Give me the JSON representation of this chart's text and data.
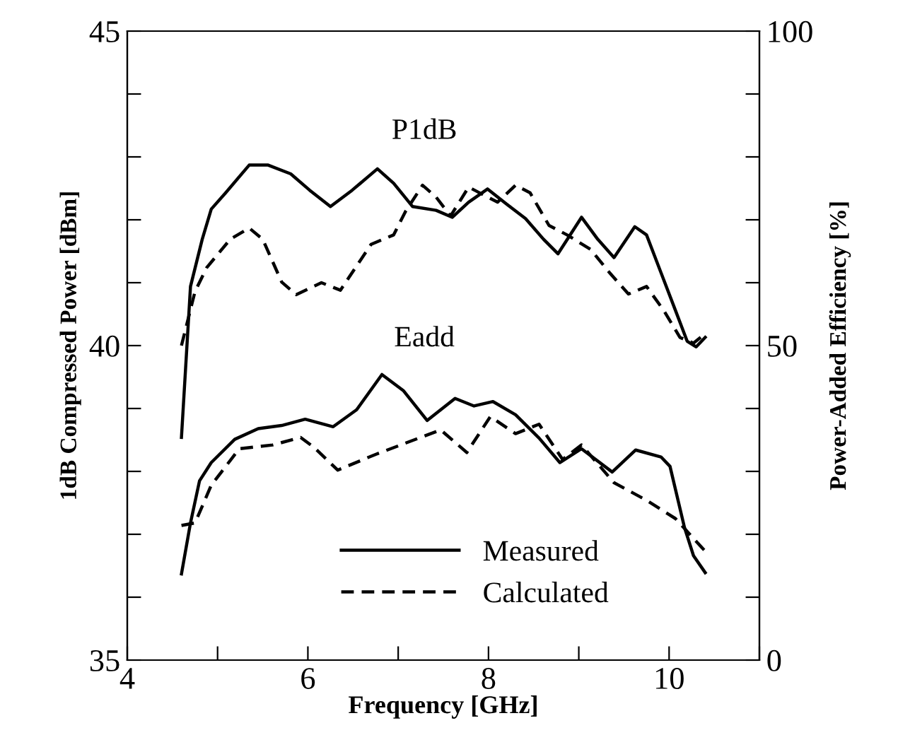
{
  "chart_data": {
    "type": "line",
    "xlabel": "Frequency [GHz]",
    "ylabel": "1dB Compressed Power [dBm]",
    "y2label": "Power-Added Efficiency [%]",
    "xlim": [
      4,
      11
    ],
    "xticks": [
      4,
      {
        "value": 5,
        "label": null
      },
      6,
      {
        "value": 7,
        "label": null
      },
      8,
      {
        "value": 9,
        "label": null
      },
      10,
      {
        "value": 11,
        "label": null
      }
    ],
    "ylim": [
      35,
      45
    ],
    "yticks": [
      35,
      {
        "value": 36,
        "label": null
      },
      {
        "value": 37,
        "label": null
      },
      {
        "value": 38,
        "label": null
      },
      {
        "value": 39,
        "label": null
      },
      40,
      {
        "value": 41,
        "label": null
      },
      {
        "value": 42,
        "label": null
      },
      {
        "value": 43,
        "label": null
      },
      {
        "value": 44,
        "label": null
      },
      45
    ],
    "y2lim": [
      0,
      100
    ],
    "y2ticks": [
      0,
      {
        "value": 10,
        "label": null
      },
      {
        "value": 20,
        "label": null
      },
      {
        "value": 30,
        "label": null
      },
      {
        "value": 40,
        "label": null
      },
      50,
      {
        "value": 60,
        "label": null
      },
      {
        "value": 70,
        "label": null
      },
      {
        "value": 80,
        "label": null
      },
      {
        "value": 90,
        "label": null
      },
      100
    ],
    "grid": false,
    "legend": "bottom",
    "marker": "none",
    "annotations": [
      "P1dB",
      "Eadd"
    ],
    "series": [
      {
        "name": "Measured",
        "color": "#000000",
        "line_style": "solid",
        "x": [
          4.6,
          4.7,
          4.83,
          4.93,
          5.09,
          5.35,
          5.56,
          5.81,
          6.02,
          6.25,
          6.49,
          6.77,
          6.95,
          7.16,
          7.42,
          7.6,
          7.78,
          7.99,
          8.2,
          8.41,
          8.61,
          8.77,
          9.03,
          9.21,
          9.39,
          9.62,
          9.75,
          9.91,
          10.07,
          10.2,
          10.3,
          10.4
        ],
        "values": [
          38.54,
          40.94,
          41.69,
          42.17,
          42.43,
          42.87,
          42.87,
          42.73,
          42.47,
          42.21,
          42.47,
          42.81,
          42.58,
          42.21,
          42.15,
          42.04,
          42.28,
          42.49,
          42.25,
          42.02,
          41.69,
          41.46,
          42.04,
          41.69,
          41.4,
          41.89,
          41.76,
          41.16,
          40.56,
          40.07,
          39.98,
          40.13
        ]
      },
      {
        "name": "Calculated",
        "color": "#000000",
        "line_style": "dashed",
        "x": [
          4.6,
          4.75,
          4.88,
          5.14,
          5.35,
          5.5,
          5.71,
          5.87,
          6.15,
          6.36,
          6.7,
          6.95,
          7.08,
          7.27,
          7.42,
          7.58,
          7.78,
          7.94,
          8.1,
          8.3,
          8.46,
          8.67,
          8.87,
          9.13,
          9.34,
          9.55,
          9.75,
          9.94,
          10.12,
          10.27,
          10.4
        ],
        "values": [
          40.0,
          40.86,
          41.24,
          41.69,
          41.87,
          41.69,
          41.01,
          40.81,
          41.0,
          40.88,
          41.61,
          41.76,
          42.13,
          42.55,
          42.36,
          42.06,
          42.52,
          42.4,
          42.28,
          42.55,
          42.43,
          41.91,
          41.76,
          41.53,
          41.16,
          40.82,
          40.94,
          40.56,
          40.13,
          40.04,
          40.19
        ]
      },
      {
        "color": "#000000",
        "line_style": "solid",
        "axis": "y2",
        "x": [
          4.6,
          4.7,
          4.8,
          4.93,
          5.19,
          5.45,
          5.71,
          5.97,
          6.28,
          6.54,
          6.82,
          7.06,
          7.32,
          7.63,
          7.84,
          8.05,
          8.3,
          8.56,
          8.79,
          9.03,
          9.37,
          9.63,
          9.91,
          10.01,
          10.17,
          10.27,
          10.4
        ],
        "values": [
          13.7,
          21.8,
          28.5,
          31.4,
          35.1,
          36.8,
          37.3,
          38.3,
          37.1,
          39.8,
          45.4,
          42.8,
          38.1,
          41.6,
          40.4,
          41.1,
          39.0,
          35.3,
          31.4,
          33.6,
          29.9,
          33.4,
          32.3,
          30.8,
          21.1,
          16.6,
          13.9
        ]
      },
      {
        "color": "#000000",
        "line_style": "dashed",
        "axis": "y2",
        "x": [
          4.6,
          4.75,
          4.93,
          5.24,
          5.61,
          5.92,
          6.07,
          6.33,
          6.75,
          7.47,
          7.76,
          8.02,
          8.3,
          8.56,
          8.82,
          9.03,
          9.39,
          9.75,
          10.07,
          10.4
        ],
        "values": [
          21.4,
          21.8,
          27.8,
          33.6,
          34.2,
          35.4,
          33.8,
          30.2,
          32.7,
          36.6,
          33.0,
          38.7,
          36.0,
          37.5,
          31.9,
          34.2,
          28.2,
          25.4,
          22.5,
          17.3
        ]
      }
    ]
  }
}
